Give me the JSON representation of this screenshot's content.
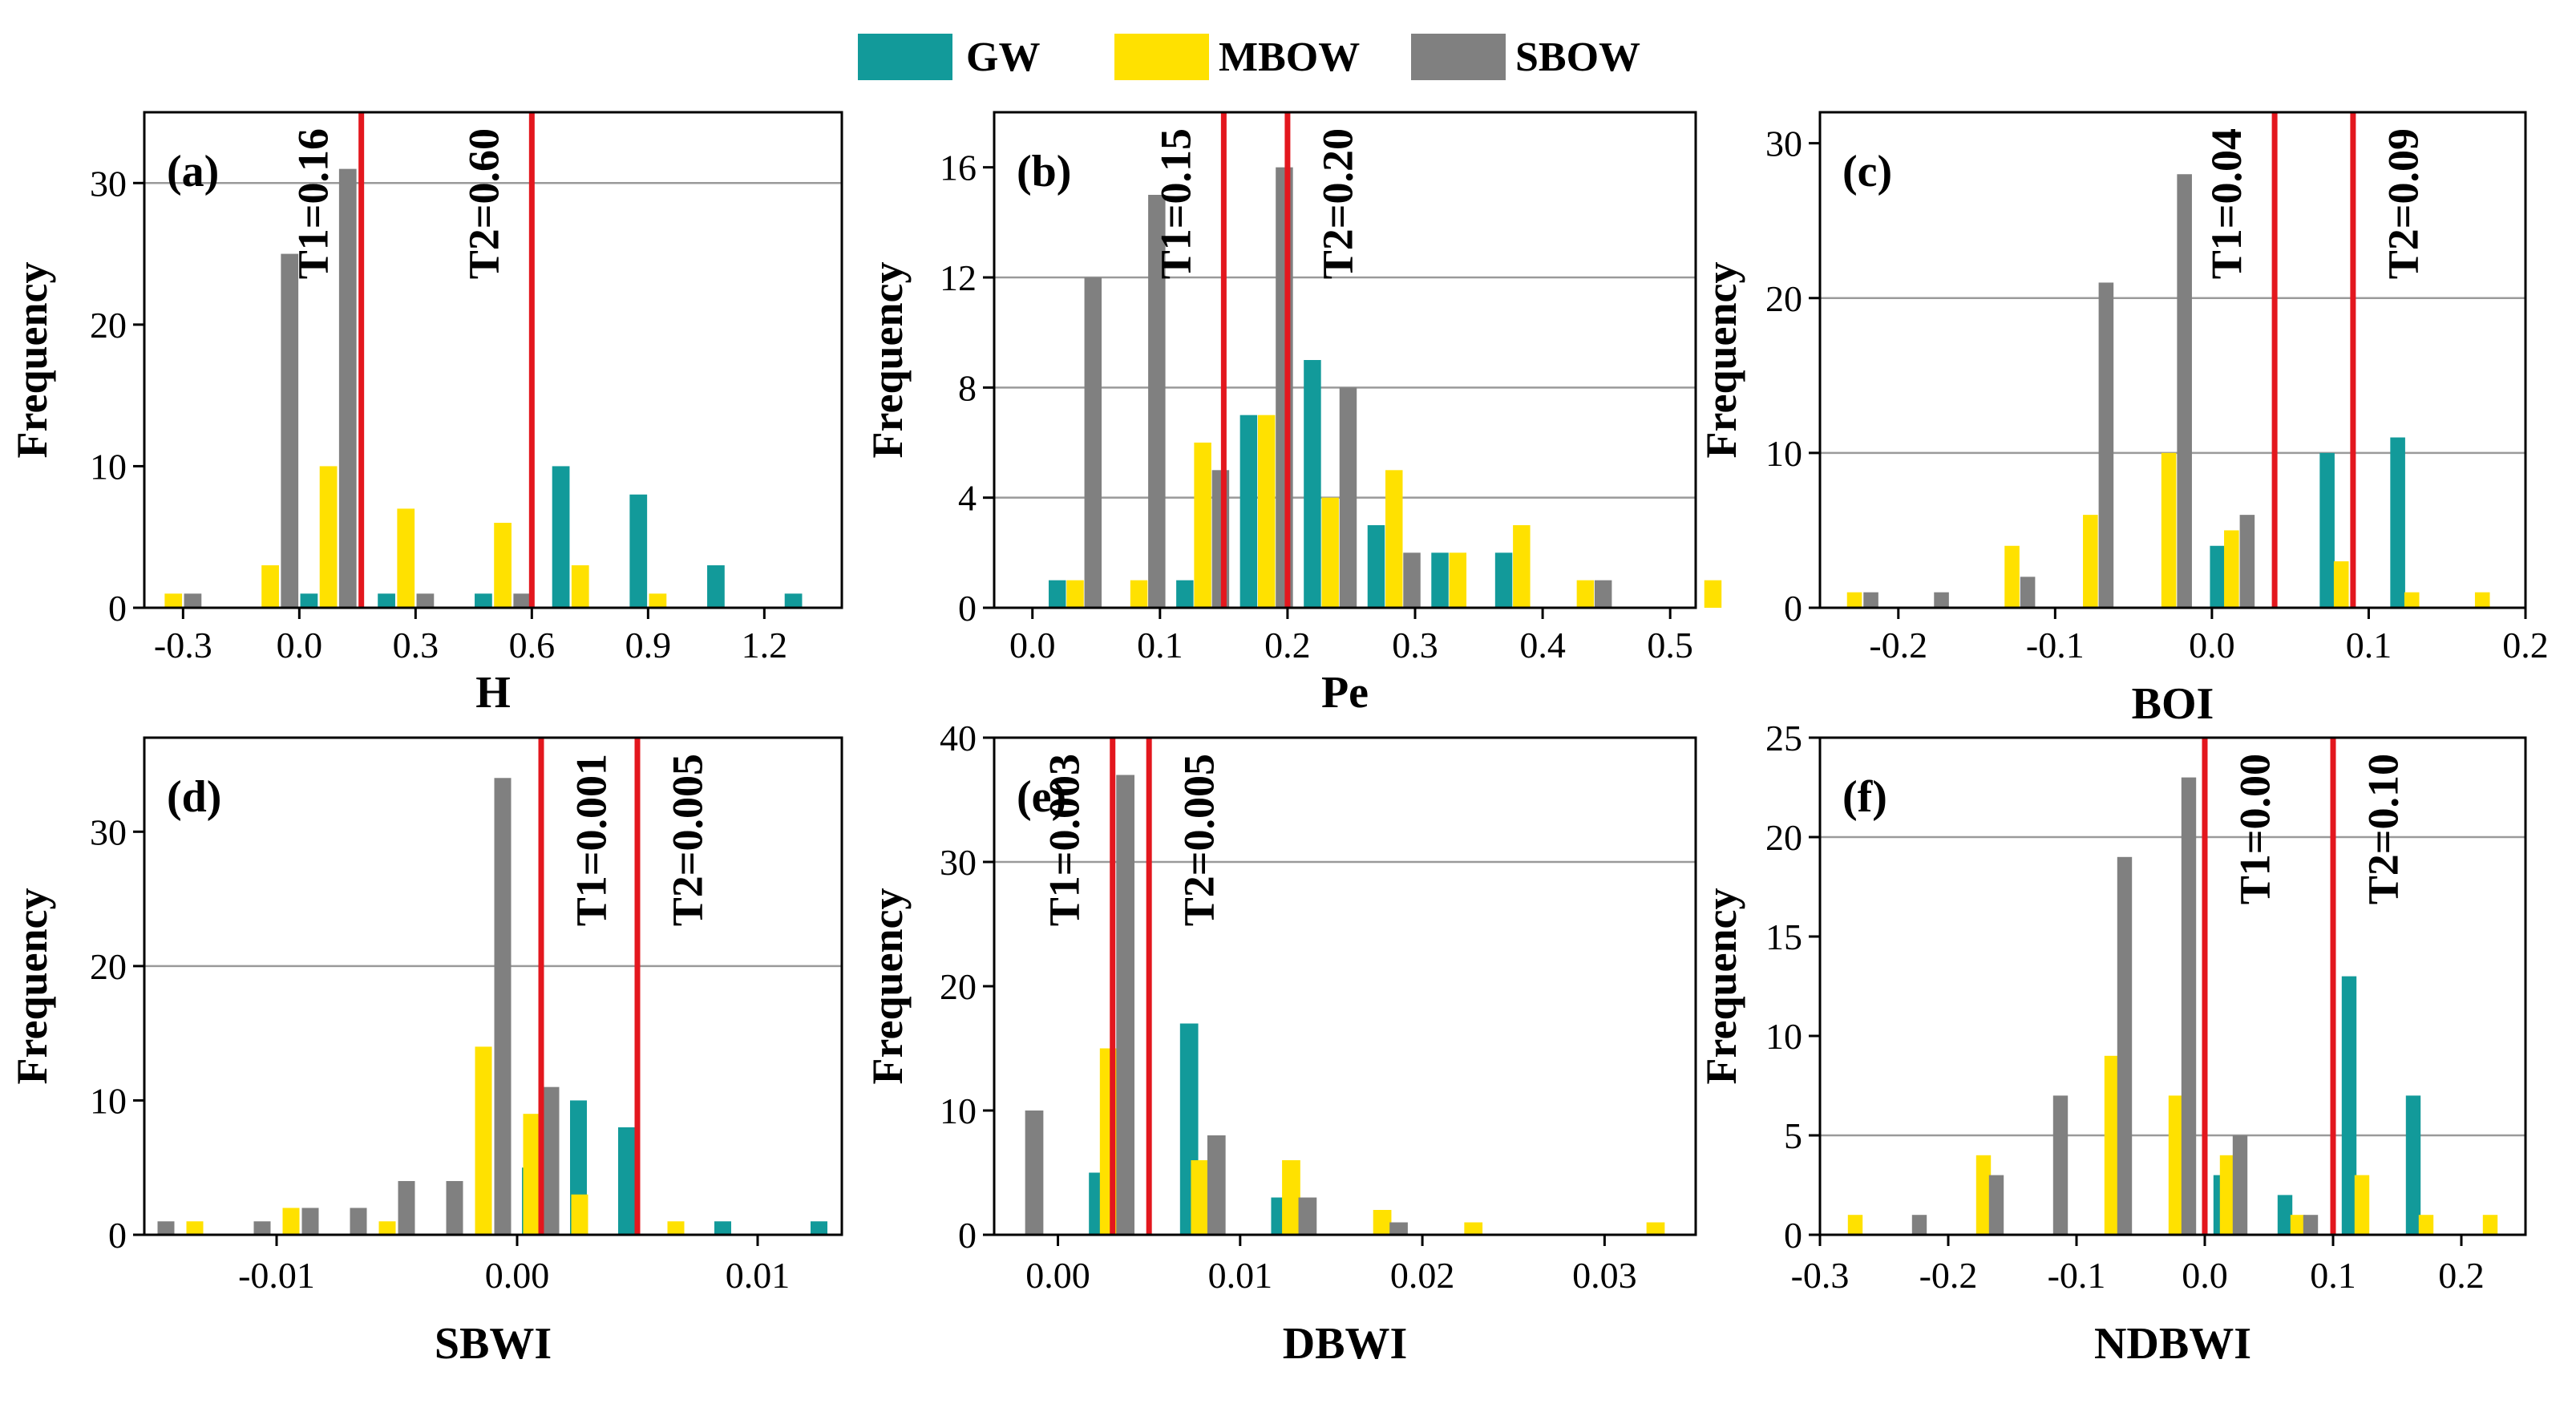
{
  "legend": [
    {
      "name": "GW",
      "color": "#129A9A"
    },
    {
      "name": "MBOW",
      "color": "#FFE100"
    },
    {
      "name": "SBOW",
      "color": "#808080"
    }
  ],
  "colors": {
    "GW": "#129A9A",
    "MBOW": "#FFE100",
    "SBOW": "#808080",
    "threshold": "#E3171E",
    "grid": "#9a9a9a"
  },
  "chart_data": [
    {
      "type": "bar",
      "label": "(a)",
      "xlabel": "H",
      "ylabel": "Frequency",
      "xlim": [
        -0.4,
        1.4
      ],
      "ylim": [
        0,
        35
      ],
      "xticks": [
        -0.3,
        0.0,
        0.3,
        0.6,
        0.9,
        1.2
      ],
      "xtick_labels": [
        "-0.3",
        "0.0",
        "0.3",
        "0.6",
        "0.9",
        "1.2"
      ],
      "yticks": [
        0,
        10,
        20,
        30
      ],
      "ytick_labels": [
        "0",
        "10",
        "20",
        "30"
      ],
      "gridlines": [
        30
      ],
      "bar_width": 0.045,
      "series": [
        {
          "name": "GW",
          "x": [
            0.025,
            0.225,
            0.475,
            0.675,
            0.875,
            1.075,
            1.275
          ],
          "values": [
            1,
            1,
            1,
            10,
            8,
            3,
            1
          ]
        },
        {
          "name": "MBOW",
          "x": [
            -0.325,
            -0.075,
            0.075,
            0.275,
            0.525,
            0.725,
            0.925
          ],
          "values": [
            1,
            3,
            10,
            7,
            6,
            3,
            1
          ]
        },
        {
          "name": "SBOW",
          "x": [
            -0.275,
            -0.025,
            0.125,
            0.325,
            0.575
          ],
          "values": [
            1,
            25,
            31,
            1,
            1
          ]
        }
      ],
      "thresholds": [
        {
          "value": 0.16,
          "label": "T1=0.16"
        },
        {
          "value": 0.6,
          "label": "T2=0.60"
        }
      ]
    },
    {
      "type": "bar",
      "label": "(b)",
      "xlabel": "Pe",
      "ylabel": "Frequency",
      "xlim": [
        -0.03,
        0.52
      ],
      "ylim": [
        0,
        18
      ],
      "xticks": [
        0.0,
        0.1,
        0.2,
        0.3,
        0.4,
        0.5
      ],
      "xtick_labels": [
        "0.0",
        "0.1",
        "0.2",
        "0.3",
        "0.4",
        "0.5"
      ],
      "yticks": [
        0,
        4,
        8,
        12,
        16
      ],
      "ytick_labels": [
        "0",
        "4",
        "8",
        "12",
        "16"
      ],
      "gridlines": [
        4,
        8,
        12
      ],
      "bar_width": 0.0135,
      "series": [
        {
          "name": "GW",
          "x": [
            0.0195,
            0.1195,
            0.1695,
            0.2195,
            0.2695,
            0.3195,
            0.3695
          ],
          "values": [
            1,
            1,
            7,
            9,
            3,
            2,
            2
          ]
        },
        {
          "name": "MBOW",
          "x": [
            0.0335,
            0.0835,
            0.1335,
            0.1835,
            0.2335,
            0.2835,
            0.3335,
            0.3835,
            0.4335,
            0.5335
          ],
          "values": [
            1,
            1,
            6,
            7,
            4,
            5,
            2,
            3,
            1,
            1
          ]
        },
        {
          "name": "SBOW",
          "x": [
            0.0475,
            0.0975,
            0.1475,
            0.1975,
            0.2475,
            0.2975,
            0.4475
          ],
          "values": [
            12,
            15,
            5,
            16,
            8,
            2,
            1
          ]
        }
      ],
      "thresholds": [
        {
          "value": 0.15,
          "label": "T1=0.15"
        },
        {
          "value": 0.2,
          "label": "T2=0.20"
        }
      ]
    },
    {
      "type": "bar",
      "label": "(c)",
      "xlabel": "BOI",
      "ylabel": "Frequency",
      "xlim": [
        -0.25,
        0.2
      ],
      "ylim": [
        0,
        32
      ],
      "xticks": [
        -0.2,
        -0.1,
        0.0,
        0.1,
        0.2
      ],
      "xtick_labels": [
        "-0.2",
        "-0.1",
        "0.0",
        "0.1",
        "0.2"
      ],
      "yticks": [
        0,
        10,
        20,
        30
      ],
      "ytick_labels": [
        "0",
        "10",
        "20",
        "30"
      ],
      "gridlines": [
        10,
        20
      ],
      "bar_width": 0.0095,
      "series": [
        {
          "name": "GW",
          "x": [
            0.0035,
            0.0735,
            0.1185
          ],
          "values": [
            4,
            10,
            11
          ]
        },
        {
          "name": "MBOW",
          "x": [
            -0.228,
            -0.1275,
            -0.0775,
            -0.0275,
            0.0125,
            0.0825,
            0.1275,
            0.1725
          ],
          "values": [
            1,
            4,
            6,
            10,
            5,
            3,
            1,
            1
          ]
        },
        {
          "name": "SBOW",
          "x": [
            -0.2175,
            -0.1725,
            -0.1175,
            -0.0675,
            -0.0175,
            0.0225
          ],
          "values": [
            1,
            1,
            2,
            21,
            28,
            6
          ]
        }
      ],
      "thresholds": [
        {
          "value": 0.04,
          "label": "T1=0.04"
        },
        {
          "value": 0.09,
          "label": "T2=0.09"
        }
      ]
    },
    {
      "type": "bar",
      "label": "(d)",
      "xlabel": "SBWI",
      "ylabel": "Frequency",
      "xlim": [
        -0.0155,
        0.0135
      ],
      "ylim": [
        0,
        37
      ],
      "xticks": [
        -0.01,
        0.0,
        0.01
      ],
      "xtick_labels": [
        "-0.01",
        "0.00",
        "0.01"
      ],
      "yticks": [
        0,
        10,
        20,
        30
      ],
      "ytick_labels": [
        "0",
        "10",
        "20",
        "30"
      ],
      "gridlines": [
        20
      ],
      "bar_width": 0.0007,
      "series": [
        {
          "name": "GW",
          "x": [
            0.00055,
            0.00255,
            0.00455,
            0.00855,
            0.01255
          ],
          "values": [
            5,
            10,
            8,
            1,
            1
          ]
        },
        {
          "name": "MBOW",
          "x": [
            -0.0134,
            -0.0094,
            -0.0054,
            -0.0014,
            0.0006,
            0.0026,
            0.0066
          ],
          "values": [
            1,
            2,
            1,
            14,
            9,
            3,
            1
          ]
        },
        {
          "name": "SBOW",
          "x": [
            -0.0146,
            -0.0106,
            -0.0086,
            -0.0066,
            -0.0046,
            -0.0026,
            -0.0006,
            0.0014
          ],
          "values": [
            1,
            1,
            2,
            2,
            4,
            4,
            34,
            11
          ]
        }
      ],
      "thresholds": [
        {
          "value": 0.001,
          "label": "T1=0.001"
        },
        {
          "value": 0.005,
          "label": "T2=0.005"
        }
      ]
    },
    {
      "type": "bar",
      "label": "(e)",
      "xlabel": "DBWI",
      "ylabel": "Frequency",
      "xlim": [
        -0.0035,
        0.035
      ],
      "ylim": [
        0,
        40
      ],
      "xticks": [
        0.0,
        0.01,
        0.02,
        0.03
      ],
      "xtick_labels": [
        "0.00",
        "0.01",
        "0.02",
        "0.03"
      ],
      "yticks": [
        0,
        10,
        20,
        30,
        40
      ],
      "ytick_labels": [
        "0",
        "10",
        "20",
        "30",
        "40"
      ],
      "gridlines": [
        30
      ],
      "bar_width": 0.001,
      "series": [
        {
          "name": "GW",
          "x": [
            0.0022,
            0.0072,
            0.0122
          ],
          "values": [
            5,
            17,
            3
          ]
        },
        {
          "name": "MBOW",
          "x": [
            0.0028,
            0.0078,
            0.0128,
            0.0178,
            0.0228,
            0.0328
          ],
          "values": [
            15,
            6,
            6,
            2,
            1,
            1
          ]
        },
        {
          "name": "SBOW",
          "x": [
            -0.0013,
            0.0037,
            0.0087,
            0.0137,
            0.0187
          ],
          "values": [
            10,
            37,
            8,
            3,
            1
          ]
        }
      ],
      "thresholds": [
        {
          "value": 0.003,
          "label": "T1=0.003"
        },
        {
          "value": 0.005,
          "label": "T2=0.005"
        }
      ]
    },
    {
      "type": "bar",
      "label": "(f)",
      "xlabel": "NDBWI",
      "ylabel": "Frequency",
      "xlim": [
        -0.3,
        0.25
      ],
      "ylim": [
        0,
        25
      ],
      "xticks": [
        -0.3,
        -0.2,
        -0.1,
        0.0,
        0.1,
        0.2
      ],
      "xtick_labels": [
        "-0.3",
        "-0.2",
        "-0.1",
        "0.0",
        "0.1",
        "0.2"
      ],
      "yticks": [
        0,
        5,
        10,
        15,
        20,
        25
      ],
      "ytick_labels": [
        "0",
        "5",
        "10",
        "15",
        "20",
        "25"
      ],
      "gridlines": [
        5,
        20
      ],
      "bar_width": 0.0115,
      "series": [
        {
          "name": "GW",
          "x": [
            0.0125,
            0.0625,
            0.1125,
            0.1625
          ],
          "values": [
            3,
            2,
            13,
            7
          ]
        },
        {
          "name": "MBOW",
          "x": [
            -0.2725,
            -0.1725,
            -0.0725,
            -0.0225,
            0.0175,
            0.0725,
            0.1225,
            0.1725,
            0.2225
          ],
          "values": [
            1,
            4,
            9,
            7,
            4,
            1,
            3,
            1,
            1
          ]
        },
        {
          "name": "SBOW",
          "x": [
            -0.2225,
            -0.1625,
            -0.1125,
            -0.0625,
            -0.0125,
            0.0275,
            0.0825
          ],
          "values": [
            1,
            3,
            7,
            19,
            23,
            5,
            1
          ]
        }
      ],
      "thresholds": [
        {
          "value": 0.0,
          "label": "T1=0.00"
        },
        {
          "value": 0.1,
          "label": "T2=0.10"
        }
      ]
    }
  ]
}
